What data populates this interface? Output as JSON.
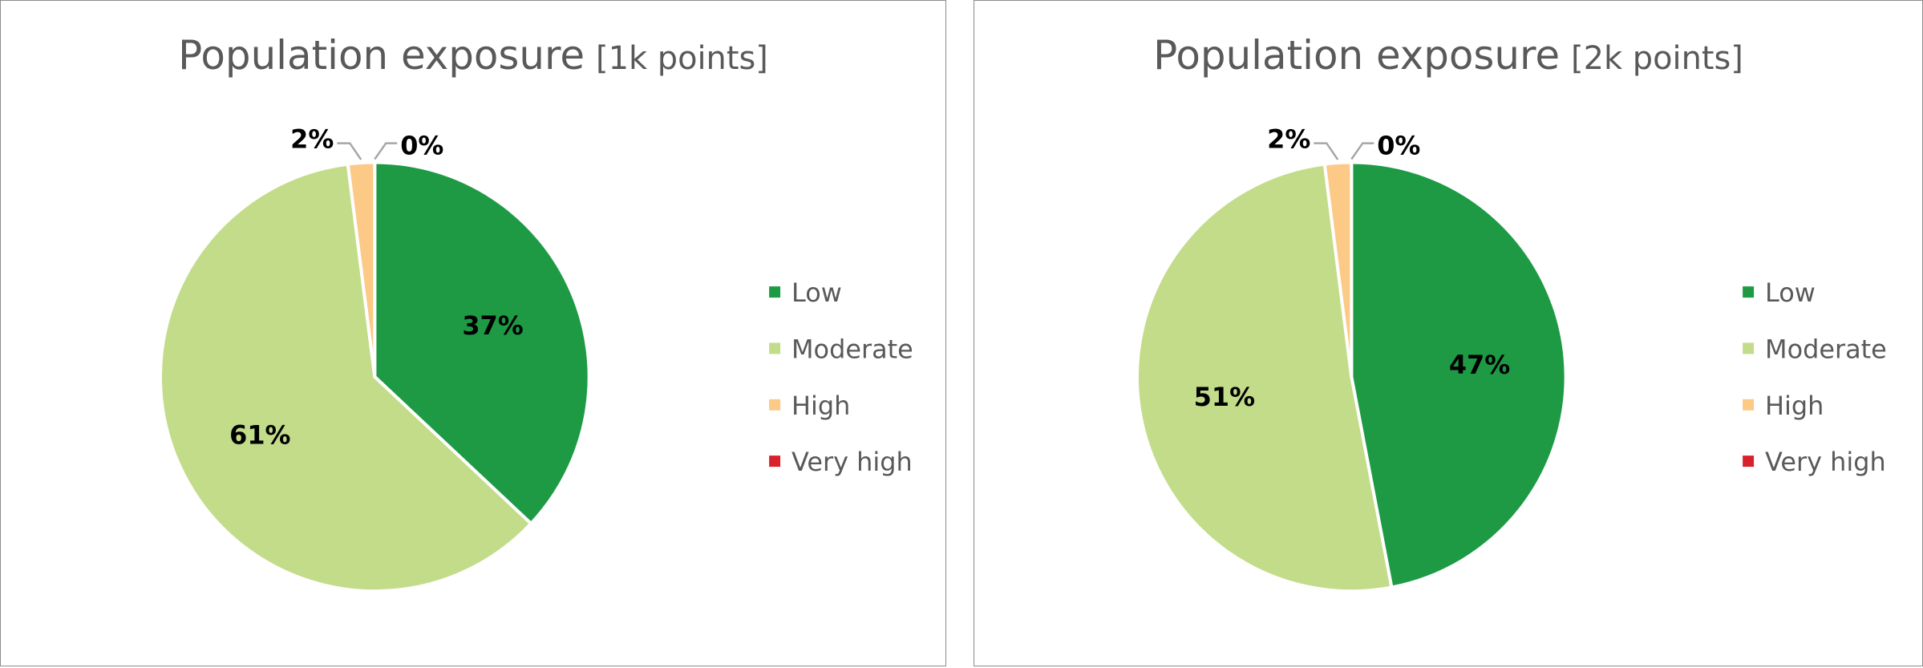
{
  "chart_data": [
    {
      "type": "pie",
      "title": "Population exposure",
      "subtitle": "[1k points]",
      "categories": [
        "Low",
        "Moderate",
        "High",
        "Very high"
      ],
      "values": [
        37,
        61,
        2,
        0
      ],
      "labels": [
        "37%",
        "61%",
        "2%",
        "0%"
      ],
      "colors": [
        "#1e9a45",
        "#c3dc8a",
        "#fcc986",
        "#d9212c"
      ],
      "legend": "right"
    },
    {
      "type": "pie",
      "title": "Population exposure",
      "subtitle": "[2k points]",
      "categories": [
        "Low",
        "Moderate",
        "High",
        "Very high"
      ],
      "values": [
        47,
        51,
        2,
        0
      ],
      "labels": [
        "47%",
        "51%",
        "2%",
        "0%"
      ],
      "colors": [
        "#1e9a45",
        "#c3dc8a",
        "#fcc986",
        "#d9212c"
      ],
      "legend": "right"
    }
  ]
}
